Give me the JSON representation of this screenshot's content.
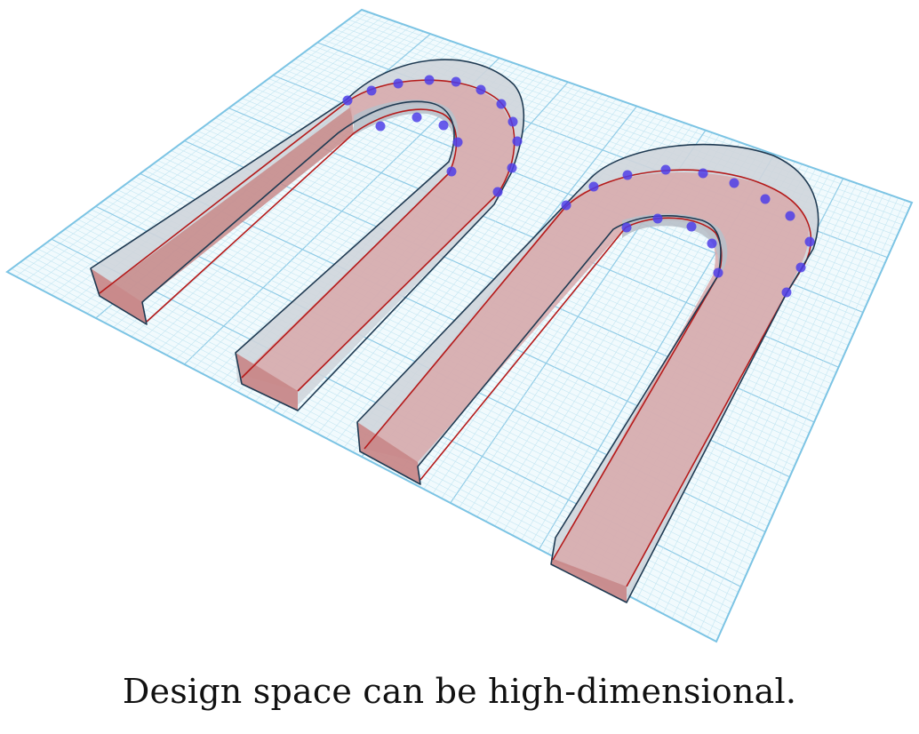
{
  "caption": "Design space can be high-dimensional.",
  "colors": {
    "background": "#ffffff",
    "grid_fine": "#c4e6f2",
    "grid_major": "#8fcbe6",
    "grid_fill": "#f1fafd",
    "grid_edge": "#7cc4e4",
    "shape_top": "#cfd5dc",
    "shape_side": "#b8c0c9",
    "shape_outline": "#1f3a52",
    "highlight_fill": "#c8898a",
    "highlight_top": "#d8a9ab",
    "highlight_line": "#b51a1a",
    "control_point": "#4f3ee8"
  },
  "scene": {
    "shapes": [
      {
        "name": "left-u-shape"
      },
      {
        "name": "right-u-shape"
      }
    ]
  }
}
